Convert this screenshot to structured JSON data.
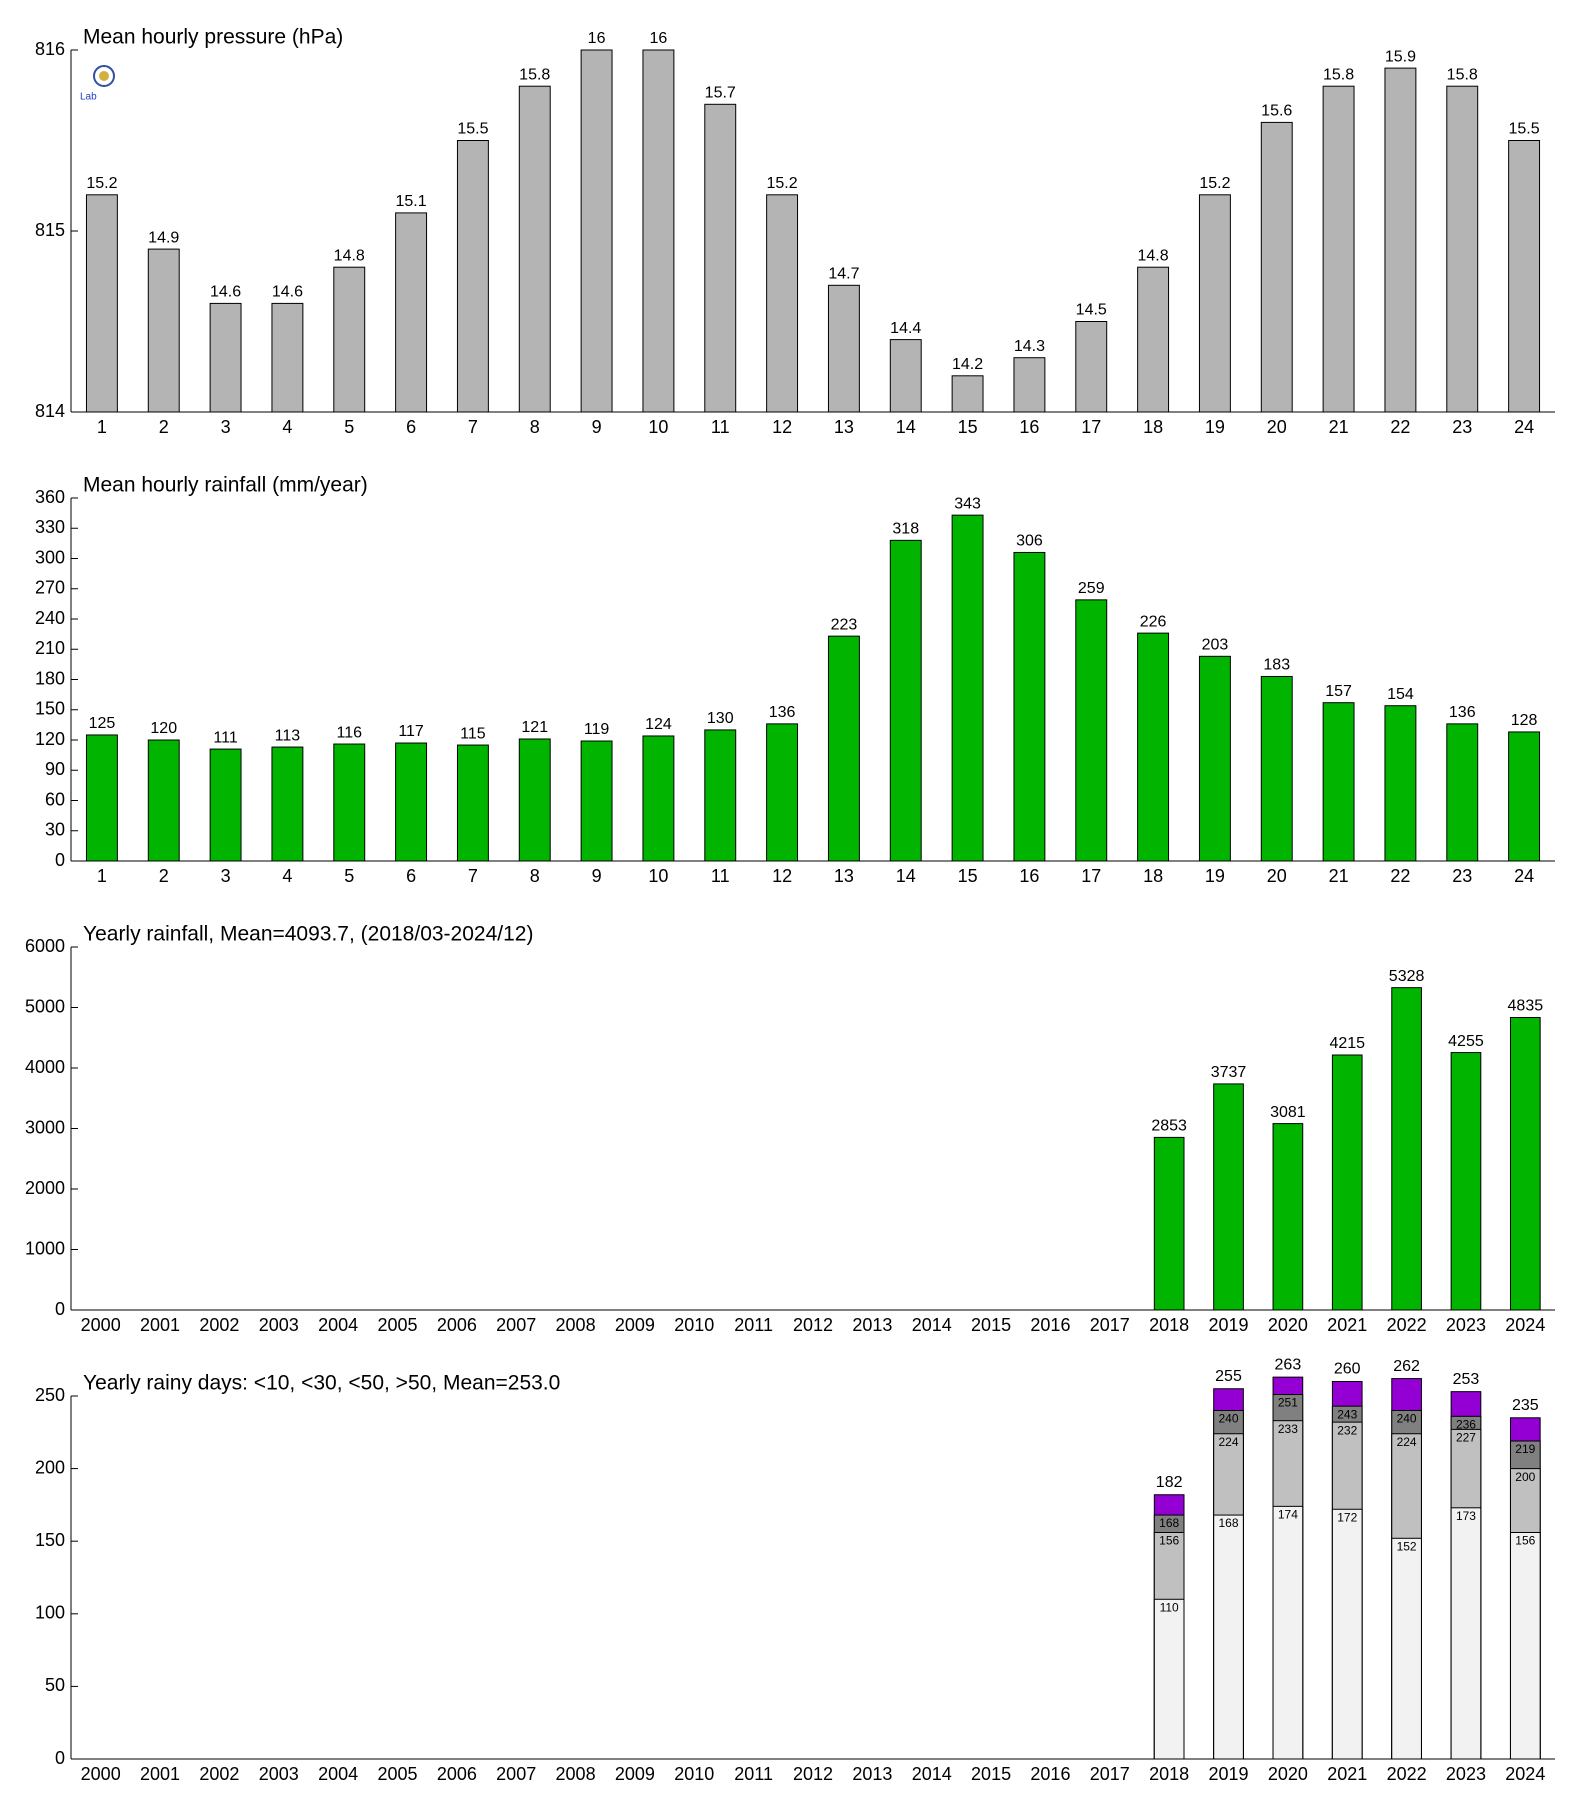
{
  "chart_data": [
    {
      "type": "bar",
      "title": "Mean hourly pressure (hPa)",
      "categories": [
        "1",
        "2",
        "3",
        "4",
        "5",
        "6",
        "7",
        "8",
        "9",
        "10",
        "11",
        "12",
        "13",
        "14",
        "15",
        "16",
        "17",
        "18",
        "19",
        "20",
        "21",
        "22",
        "23",
        "24"
      ],
      "values": [
        815.2,
        814.9,
        814.6,
        814.6,
        814.8,
        815.1,
        815.5,
        815.8,
        816,
        816,
        815.7,
        815.2,
        814.7,
        814.4,
        814.2,
        814.3,
        814.5,
        814.8,
        815.2,
        815.6,
        815.8,
        815.9,
        815.8,
        815.5
      ],
      "value_labels": [
        "15.2",
        "14.9",
        "14.6",
        "14.6",
        "14.8",
        "15.1",
        "15.5",
        "15.8",
        "16",
        "16",
        "15.7",
        "15.2",
        "14.7",
        "14.4",
        "14.2",
        "14.3",
        "14.5",
        "14.8",
        "15.2",
        "15.6",
        "15.8",
        "15.9",
        "15.8",
        "15.5"
      ],
      "color": "#b4b4b4",
      "ylim": [
        814,
        816
      ],
      "yticks": [
        814,
        815,
        816
      ]
    },
    {
      "type": "bar",
      "title": "Mean hourly rainfall (mm/year)",
      "categories": [
        "1",
        "2",
        "3",
        "4",
        "5",
        "6",
        "7",
        "8",
        "9",
        "10",
        "11",
        "12",
        "13",
        "14",
        "15",
        "16",
        "17",
        "18",
        "19",
        "20",
        "21",
        "22",
        "23",
        "24"
      ],
      "values": [
        125,
        120,
        111,
        113,
        116,
        117,
        115,
        121,
        119,
        124,
        130,
        136,
        223,
        318,
        343,
        306,
        259,
        226,
        203,
        183,
        157,
        154,
        136,
        128
      ],
      "color": "#00b400",
      "ylim": [
        0,
        360
      ],
      "yticks": [
        0,
        30,
        60,
        90,
        120,
        150,
        180,
        210,
        240,
        270,
        300,
        330,
        360
      ]
    },
    {
      "type": "bar",
      "title": "Yearly rainfall, Mean=4093.7, (2018/03-2024/12)",
      "categories": [
        "2000",
        "2001",
        "2002",
        "2003",
        "2004",
        "2005",
        "2006",
        "2007",
        "2008",
        "2009",
        "2010",
        "2011",
        "2012",
        "2013",
        "2014",
        "2015",
        "2016",
        "2017",
        "2018",
        "2019",
        "2020",
        "2021",
        "2022",
        "2023",
        "2024"
      ],
      "values": [
        null,
        null,
        null,
        null,
        null,
        null,
        null,
        null,
        null,
        null,
        null,
        null,
        null,
        null,
        null,
        null,
        null,
        null,
        2853,
        3737,
        3081,
        4215,
        5328,
        4255,
        4835
      ],
      "color": "#00b400",
      "ylim": [
        0,
        6000
      ],
      "yticks": [
        0,
        1000,
        2000,
        3000,
        4000,
        5000,
        6000
      ]
    },
    {
      "type": "overlapping_bar",
      "title": "Yearly rainy days: <10, <30, <50, >50, Mean=253.0",
      "categories": [
        "2000",
        "2001",
        "2002",
        "2003",
        "2004",
        "2005",
        "2006",
        "2007",
        "2008",
        "2009",
        "2010",
        "2011",
        "2012",
        "2013",
        "2014",
        "2015",
        "2016",
        "2017",
        "2018",
        "2019",
        "2020",
        "2021",
        "2022",
        "2023",
        "2024"
      ],
      "series": [
        {
          "color": "#9400d3",
          "values": [
            null,
            null,
            null,
            null,
            null,
            null,
            null,
            null,
            null,
            null,
            null,
            null,
            null,
            null,
            null,
            null,
            null,
            null,
            182,
            255,
            263,
            260,
            262,
            253,
            235
          ]
        },
        {
          "color": "#808080",
          "values": [
            null,
            null,
            null,
            null,
            null,
            null,
            null,
            null,
            null,
            null,
            null,
            null,
            null,
            null,
            null,
            null,
            null,
            null,
            168,
            240,
            251,
            243,
            240,
            236,
            219
          ]
        },
        {
          "color": "#c0c0c0",
          "values": [
            null,
            null,
            null,
            null,
            null,
            null,
            null,
            null,
            null,
            null,
            null,
            null,
            null,
            null,
            null,
            null,
            null,
            null,
            156,
            224,
            233,
            232,
            224,
            227,
            200
          ]
        },
        {
          "color": "#f2f2f2",
          "values": [
            null,
            null,
            null,
            null,
            null,
            null,
            null,
            null,
            null,
            null,
            null,
            null,
            null,
            null,
            null,
            null,
            null,
            null,
            110,
            168,
            174,
            172,
            152,
            173,
            156
          ]
        }
      ],
      "ylim": [
        0,
        250
      ],
      "yticks": [
        0,
        50,
        100,
        150,
        200,
        250
      ]
    }
  ]
}
